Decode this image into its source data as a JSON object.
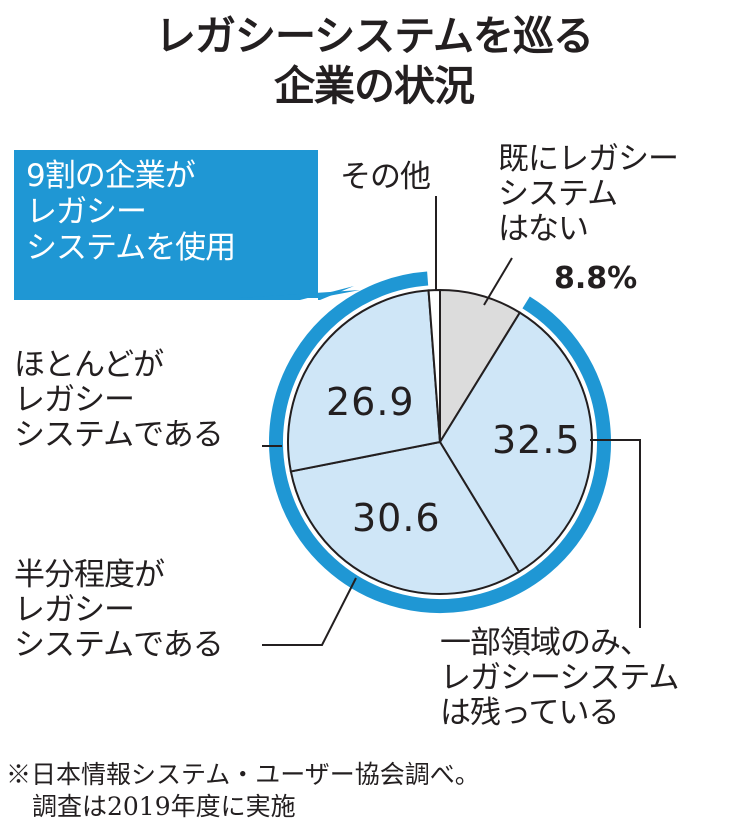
{
  "title": {
    "line1": "レガシーシステムを巡る",
    "line2": "企業の状況"
  },
  "callout": {
    "text": "9割の企業が\nレガシー\nシステムを使用"
  },
  "labels": {
    "other": "その他",
    "none": "既にレガシー\nシステム\nはない",
    "none_pct": "8.8%",
    "partial": "一部領域のみ、\nレガシーシステム\nは残っている",
    "half": "半分程度が\nレガシー\nシステムである",
    "most": "ほとんどが\nレガシー\nシステムである"
  },
  "values": {
    "partial": "32.5",
    "half": "30.6",
    "most": "26.9"
  },
  "note": {
    "line1": "※日本情報システム・ユーザー協会調べ。",
    "line2": "調査は2019年度に実施"
  },
  "colors": {
    "legacy": "#cfe6f7",
    "none": "#dcdcdc",
    "other": "#ffffff",
    "ring": "#1f97d4",
    "outline": "#231f20",
    "callout_bg": "#1f97d4"
  },
  "chart_data": {
    "type": "pie",
    "title": "レガシーシステムを巡る企業の状況",
    "slices": [
      {
        "label": "既にレガシーシステムはない",
        "value": 8.8
      },
      {
        "label": "一部領域のみ、レガシーシステムは残っている",
        "value": 32.5
      },
      {
        "label": "半分程度がレガシーシステムである",
        "value": 30.6
      },
      {
        "label": "ほとんどがレガシーシステムである",
        "value": 26.9
      },
      {
        "label": "その他",
        "value": 1.2
      }
    ],
    "highlight": "9割の企業がレガシーシステムを使用",
    "start": "top",
    "direction": "clockwise"
  }
}
